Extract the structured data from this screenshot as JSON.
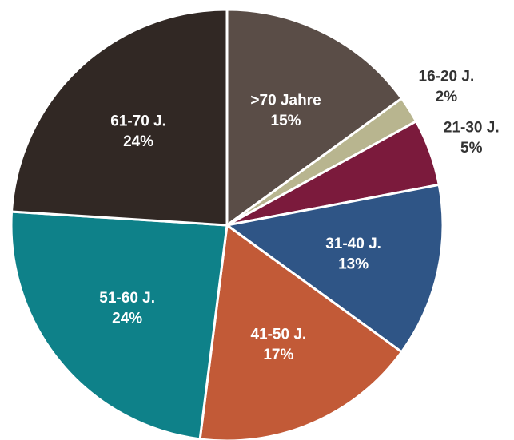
{
  "chart_data": {
    "type": "pie",
    "categories": [
      ">70 Jahre",
      "16-20 J.",
      "21-30 J.",
      "31-40 J.",
      "41-50 J.",
      "51-60 J.",
      "61-70 J."
    ],
    "values": [
      15,
      2,
      5,
      13,
      17,
      24,
      24
    ],
    "value_labels": [
      "15%",
      "2%",
      "5%",
      "13%",
      "17%",
      "24%",
      "24%"
    ],
    "colors": [
      "#5a4d47",
      "#b8b58f",
      "#7b1a3c",
      "#2f5586",
      "#c25a37",
      "#0e8189",
      "#312824"
    ]
  }
}
